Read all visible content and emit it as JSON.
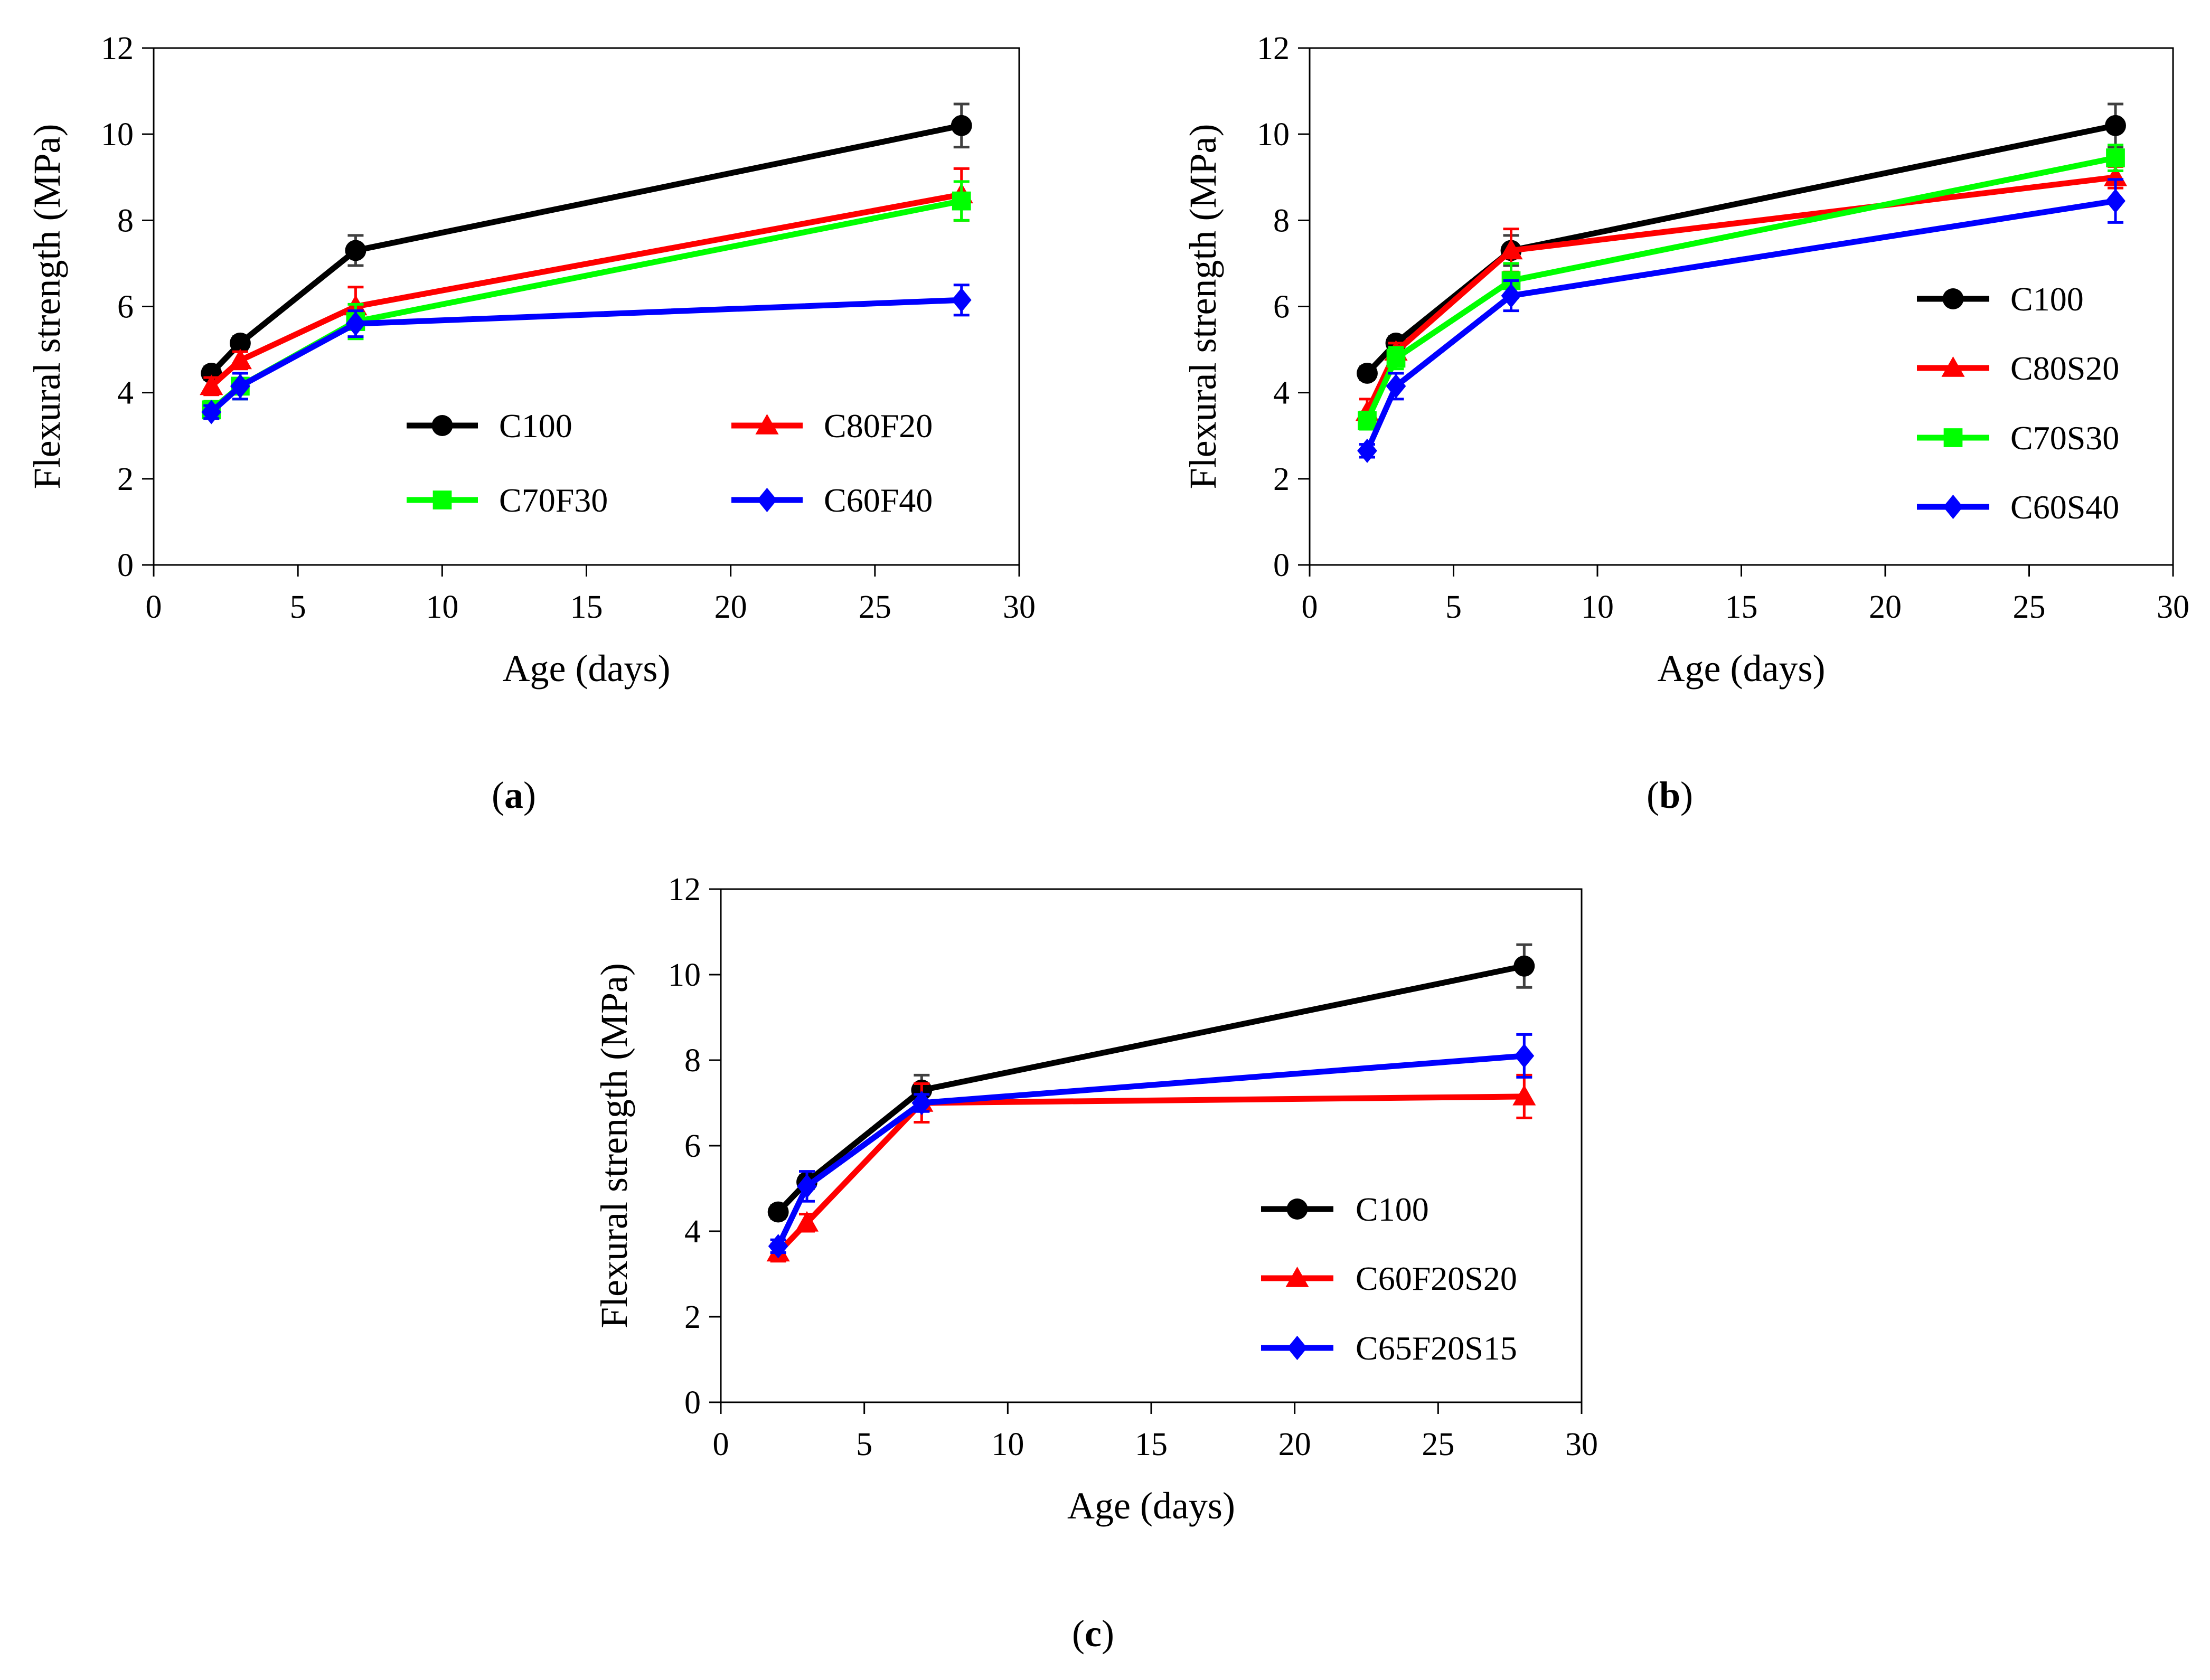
{
  "chart_data": [
    {
      "type": "line",
      "panel_label": "a",
      "xlabel": "Age (days)",
      "ylabel": "Flexural strength (MPa)",
      "xlim": [
        0,
        30
      ],
      "ylim": [
        0,
        12
      ],
      "xticks": [
        0,
        5,
        10,
        15,
        20,
        25,
        30
      ],
      "yticks": [
        0,
        2,
        4,
        6,
        8,
        10,
        12
      ],
      "grid": false,
      "legend_placement": "bottom-center-two-columns",
      "x": [
        2,
        3,
        7,
        28
      ],
      "series": [
        {
          "name": "C100",
          "marker": "circle",
          "color": "#000000",
          "values": [
            4.45,
            5.15,
            7.3,
            10.2
          ],
          "errors": [
            0.15,
            0.15,
            0.35,
            0.5
          ]
        },
        {
          "name": "C80F20",
          "marker": "triangle",
          "color": "#ff0000",
          "values": [
            4.15,
            4.75,
            6.0,
            8.6
          ],
          "errors": [
            0.2,
            0.2,
            0.45,
            0.6
          ]
        },
        {
          "name": "C70F30",
          "marker": "square",
          "color": "#00ff00",
          "values": [
            3.6,
            4.15,
            5.65,
            8.45
          ],
          "errors": [
            0.2,
            0.3,
            0.4,
            0.45
          ]
        },
        {
          "name": "C60F40",
          "marker": "diamond",
          "color": "#0000ff",
          "values": [
            3.55,
            4.15,
            5.6,
            6.15
          ],
          "errors": [
            0.15,
            0.3,
            0.3,
            0.35
          ]
        }
      ]
    },
    {
      "type": "line",
      "panel_label": "b",
      "xlabel": "Age (days)",
      "ylabel": "Flexural strength (MPa)",
      "xlim": [
        0,
        30
      ],
      "ylim": [
        0,
        12
      ],
      "xticks": [
        0,
        5,
        10,
        15,
        20,
        25,
        30
      ],
      "yticks": [
        0,
        2,
        4,
        6,
        8,
        10,
        12
      ],
      "grid": false,
      "legend_placement": "right",
      "x": [
        2,
        3,
        7,
        28
      ],
      "series": [
        {
          "name": "C100",
          "marker": "circle",
          "color": "#000000",
          "values": [
            4.45,
            5.15,
            7.3,
            10.2
          ],
          "errors": [
            0.15,
            0.15,
            0.35,
            0.5
          ]
        },
        {
          "name": "C80S20",
          "marker": "triangle",
          "color": "#ff0000",
          "values": [
            3.55,
            4.95,
            7.3,
            9.0
          ],
          "errors": [
            0.3,
            0.2,
            0.5,
            0.25
          ]
        },
        {
          "name": "C70S30",
          "marker": "square",
          "color": "#00ff00",
          "values": [
            3.35,
            4.8,
            6.6,
            9.45
          ],
          "errors": [
            0.2,
            0.25,
            0.4,
            0.3
          ]
        },
        {
          "name": "C60S40",
          "marker": "diamond",
          "color": "#0000ff",
          "values": [
            2.65,
            4.15,
            6.25,
            8.45
          ],
          "errors": [
            0.15,
            0.3,
            0.35,
            0.5
          ]
        }
      ]
    },
    {
      "type": "line",
      "panel_label": "c",
      "xlabel": "Age (days)",
      "ylabel": "Flexural strength (MPa)",
      "xlim": [
        0,
        30
      ],
      "ylim": [
        0,
        12
      ],
      "xticks": [
        0,
        5,
        10,
        15,
        20,
        25,
        30
      ],
      "yticks": [
        0,
        2,
        4,
        6,
        8,
        10,
        12
      ],
      "grid": false,
      "legend_placement": "bottom-right",
      "x": [
        2,
        3,
        7,
        28
      ],
      "series": [
        {
          "name": "C100",
          "marker": "circle",
          "color": "#000000",
          "values": [
            4.45,
            5.15,
            7.3,
            10.2
          ],
          "errors": [
            0.15,
            0.15,
            0.35,
            0.5
          ]
        },
        {
          "name": "C60F20S20",
          "marker": "triangle",
          "color": "#ff0000",
          "values": [
            3.5,
            4.2,
            7.0,
            7.15
          ],
          "errors": [
            0.2,
            0.2,
            0.45,
            0.5
          ]
        },
        {
          "name": "C65F20S15",
          "marker": "diamond",
          "color": "#0000ff",
          "values": [
            3.65,
            5.05,
            7.0,
            8.1
          ],
          "errors": [
            0.15,
            0.35,
            0.2,
            0.5
          ]
        }
      ]
    }
  ],
  "error_bar_color": "#404040"
}
